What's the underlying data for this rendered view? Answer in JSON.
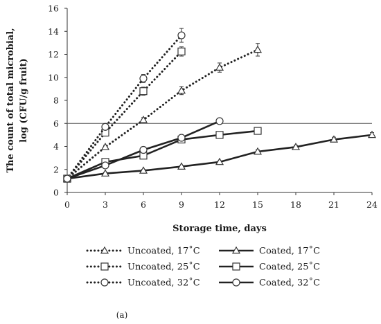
{
  "chart_data": {
    "type": "line",
    "xlabel": "Storage time, days",
    "ylabel_line1": "The count of total microbial,",
    "ylabel_line2": "log (CFU/g fruit)",
    "xlim": [
      0,
      24
    ],
    "ylim": [
      0,
      16
    ],
    "x_ticks": [
      0,
      3,
      6,
      9,
      12,
      15,
      18,
      21,
      24
    ],
    "y_ticks": [
      0,
      2,
      4,
      6,
      8,
      10,
      12,
      14,
      16
    ],
    "reference_line_y": 6,
    "grid": false,
    "legend_position": "bottom",
    "panel_label": "(a)",
    "series": [
      {
        "name": "Uncoated, 17˚C",
        "style": "dotted",
        "marker": "triangle",
        "x": [
          0,
          3,
          6,
          9,
          12,
          15
        ],
        "y": [
          1.2,
          3.95,
          6.3,
          8.85,
          10.85,
          12.4
        ],
        "err": [
          0.1,
          0.15,
          0.2,
          0.35,
          0.4,
          0.55
        ]
      },
      {
        "name": "Uncoated, 25˚C",
        "style": "dotted",
        "marker": "square",
        "x": [
          0,
          3,
          6,
          9
        ],
        "y": [
          1.2,
          5.2,
          8.8,
          12.25
        ],
        "err": [
          0.1,
          0.3,
          0.35,
          0.4
        ]
      },
      {
        "name": "Uncoated, 32˚C",
        "style": "dotted",
        "marker": "circle",
        "x": [
          0,
          3,
          6,
          9
        ],
        "y": [
          1.2,
          5.7,
          9.9,
          13.65
        ],
        "err": [
          0.1,
          0.25,
          0.35,
          0.6
        ]
      },
      {
        "name": "Coated, 17˚C",
        "style": "solid",
        "marker": "triangle",
        "x": [
          0,
          3,
          6,
          9,
          12,
          15,
          18,
          21,
          24
        ],
        "y": [
          1.2,
          1.65,
          1.9,
          2.25,
          2.65,
          3.55,
          3.95,
          4.6,
          5.0
        ],
        "err": [
          0.1,
          0.1,
          0.1,
          0.1,
          0.1,
          0.15,
          0.15,
          0.2,
          0.2
        ]
      },
      {
        "name": "Coated, 25˚C",
        "style": "solid",
        "marker": "square",
        "x": [
          0,
          3,
          6,
          9,
          12,
          15
        ],
        "y": [
          1.2,
          2.65,
          3.2,
          4.6,
          5.0,
          5.35
        ],
        "err": [
          0.1,
          0.1,
          0.15,
          0.15,
          0.15,
          0.15
        ]
      },
      {
        "name": "Coated, 32˚C",
        "style": "solid",
        "marker": "circle",
        "x": [
          0,
          3,
          6,
          9,
          12
        ],
        "y": [
          1.2,
          2.35,
          3.7,
          4.75,
          6.2
        ],
        "err": [
          0.1,
          0.15,
          0.2,
          0.2,
          0.2
        ]
      }
    ]
  }
}
